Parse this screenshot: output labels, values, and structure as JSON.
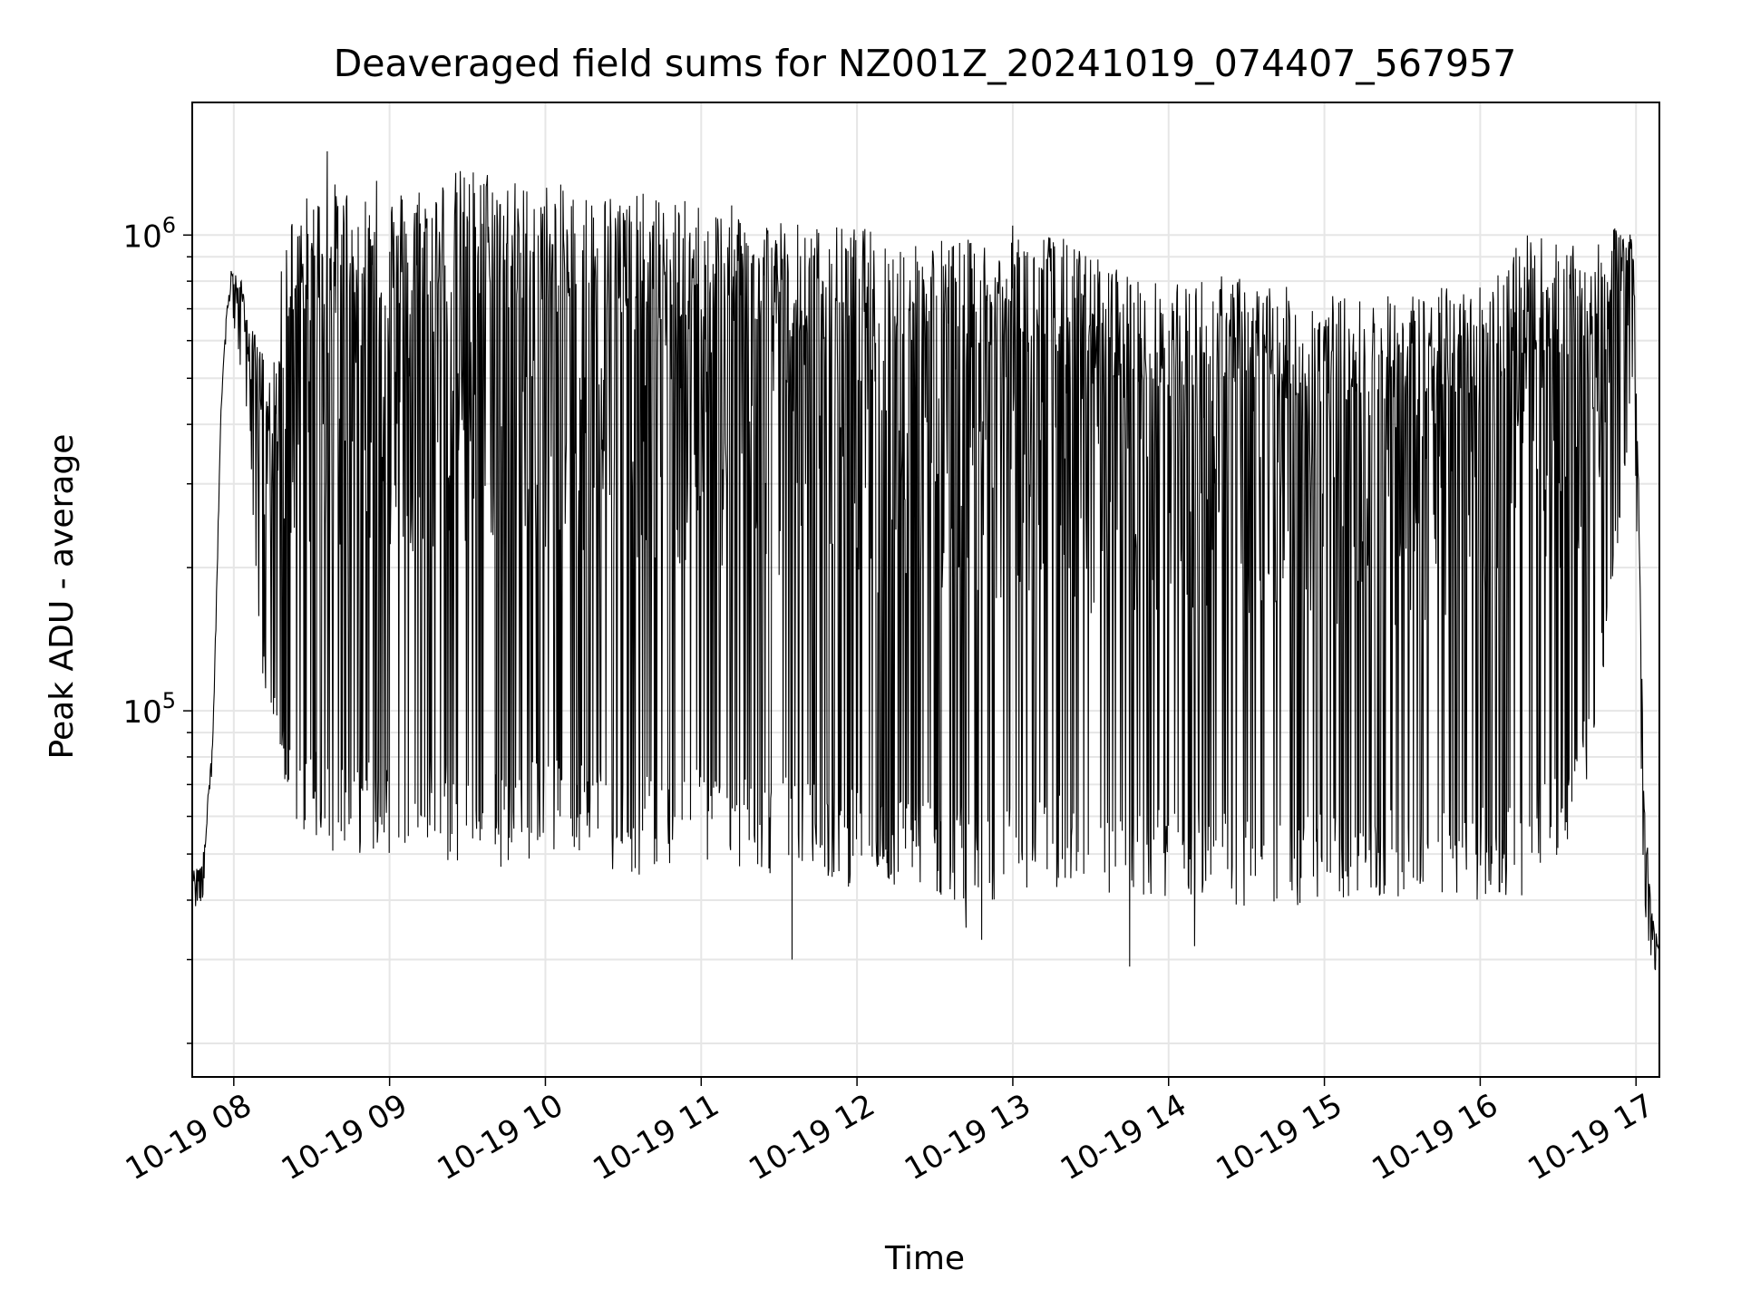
{
  "chart_data": {
    "type": "line",
    "title": "Deaveraged field sums for NZ001Z_20241019_074407_567957",
    "xlabel": "Time",
    "ylabel": "Peak ADU - average",
    "y_scale": "log",
    "ylim": [
      17000,
      1900000
    ],
    "xlim": [
      "2024-10-19 07:44",
      "2024-10-19 17:09"
    ],
    "grid": true,
    "legend": "none",
    "line_color": "#000000",
    "grid_color": "#e6e6e6",
    "x_ticks": [
      "10-19 08",
      "10-19 09",
      "10-19 10",
      "10-19 11",
      "10-19 12",
      "10-19 13",
      "10-19 14",
      "10-19 15",
      "10-19 16",
      "10-19 17"
    ],
    "y_tick_labels": [
      {
        "value": 100000,
        "label": "10^5"
      },
      {
        "value": 1000000,
        "label": "10^6"
      }
    ],
    "series": [
      {
        "upper_envelope": {
          "x": [
            "07:44",
            "07:48",
            "07:52",
            "07:55",
            "07:57",
            "07:59",
            "08:03",
            "08:06",
            "08:10",
            "08:15",
            "08:20",
            "08:30",
            "08:40",
            "08:50",
            "09:00",
            "09:10",
            "09:20",
            "09:30",
            "09:40",
            "09:50",
            "10:00",
            "10:15",
            "10:30",
            "10:45",
            "11:00",
            "11:15",
            "11:30",
            "11:45",
            "12:00",
            "12:15",
            "12:30",
            "12:45",
            "13:00",
            "13:15",
            "13:30",
            "13:45",
            "14:00",
            "14:15",
            "14:30",
            "14:45",
            "15:00",
            "15:15",
            "15:30",
            "15:45",
            "16:00",
            "16:15",
            "16:25",
            "16:35",
            "16:45",
            "16:55",
            "16:59",
            "17:01",
            "17:03",
            "17:06",
            "17:09"
          ],
          "y": [
            46000,
            48000,
            90000,
            420000,
            680000,
            850000,
            800000,
            650000,
            600000,
            500000,
            1100000,
            1250000,
            1300000,
            1250000,
            1250000,
            1300000,
            1350000,
            1400000,
            1400000,
            1300000,
            1300000,
            1250000,
            1250000,
            1200000,
            1180000,
            1150000,
            1100000,
            1050000,
            1050000,
            1000000,
            1000000,
            980000,
            1050000,
            1020000,
            920000,
            850000,
            780000,
            830000,
            820000,
            780000,
            760000,
            740000,
            760000,
            780000,
            800000,
            1000000,
            1000000,
            950000,
            950000,
            1080000,
            1050000,
            300000,
            70000,
            38000,
            32000
          ]
        },
        "lower_envelope": {
          "x": [
            "07:44",
            "07:48",
            "07:52",
            "07:55",
            "07:57",
            "07:59",
            "08:03",
            "08:06",
            "08:10",
            "08:15",
            "08:20",
            "08:30",
            "08:40",
            "08:50",
            "09:00",
            "09:10",
            "09:20",
            "09:30",
            "09:40",
            "09:50",
            "10:00",
            "10:15",
            "10:30",
            "10:45",
            "11:00",
            "11:15",
            "11:30",
            "11:45",
            "12:00",
            "12:15",
            "12:30",
            "12:45",
            "13:00",
            "13:15",
            "13:30",
            "13:45",
            "14:00",
            "14:15",
            "14:30",
            "14:45",
            "15:00",
            "15:15",
            "15:30",
            "15:45",
            "16:00",
            "16:15",
            "16:25",
            "16:35",
            "16:45",
            "16:55",
            "16:59",
            "17:01",
            "17:03",
            "17:06",
            "17:09"
          ],
          "y": [
            38000,
            40000,
            80000,
            400000,
            600000,
            700000,
            500000,
            400000,
            120000,
            90000,
            60000,
            52000,
            50000,
            50000,
            50000,
            50000,
            48000,
            45000,
            45000,
            48000,
            50000,
            50000,
            45000,
            45000,
            48000,
            45000,
            45000,
            45000,
            42000,
            42000,
            40000,
            40000,
            40000,
            42000,
            38000,
            38000,
            40000,
            40000,
            38000,
            38000,
            40000,
            40000,
            40000,
            40000,
            40000,
            40000,
            45000,
            50000,
            90000,
            280000,
            500000,
            150000,
            38000,
            30000,
            27000
          ]
        },
        "spikes": {
          "x": [
            "08:36",
            "08:55",
            "11:35",
            "12:42",
            "12:48",
            "13:45",
            "14:10",
            "16:40"
          ],
          "y": [
            1500000,
            1300000,
            30000,
            35000,
            33000,
            29000,
            32000,
            95000
          ]
        }
      }
    ]
  }
}
